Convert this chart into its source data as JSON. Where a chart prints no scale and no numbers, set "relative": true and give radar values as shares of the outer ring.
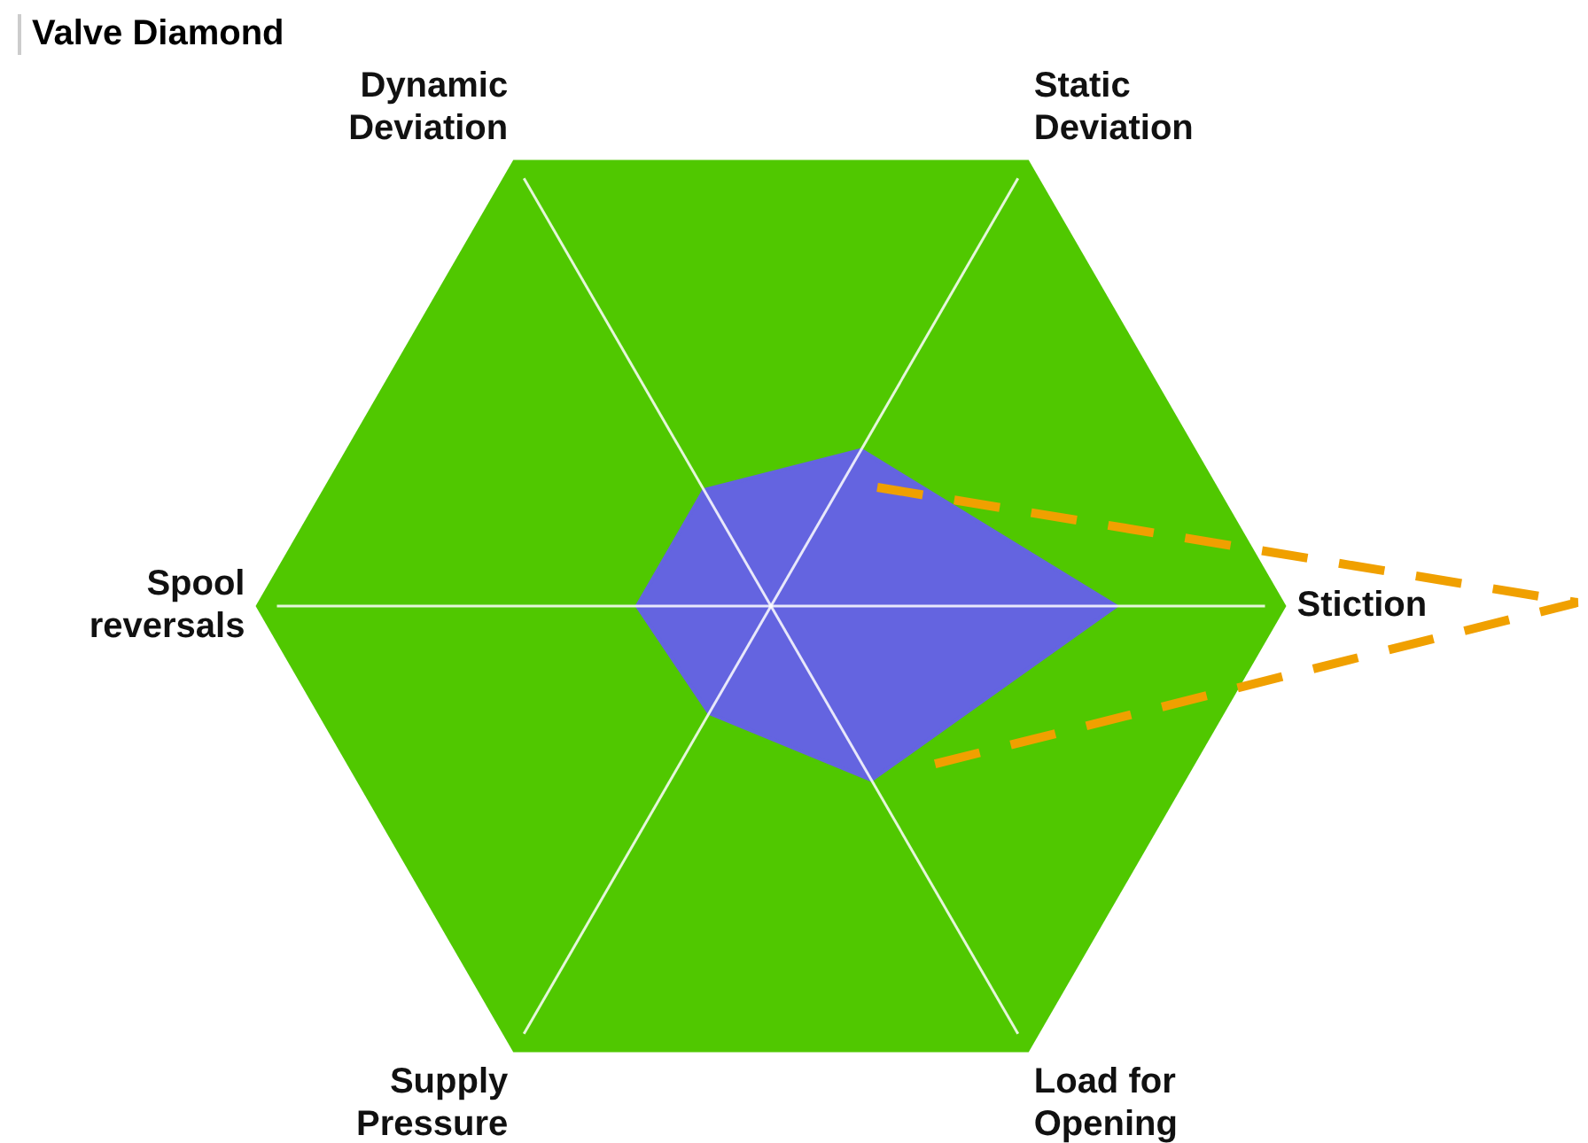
{
  "chart_data": {
    "type": "radar",
    "title": "Valve Diamond",
    "relative": true,
    "categories": [
      "Static Deviation",
      "Stiction",
      "Load for Opening",
      "Supply Pressure",
      "Spool reversals",
      "Dynamic Deviation"
    ],
    "series": [
      {
        "color": "#6464e0",
        "values": [
          0.35,
          0.67,
          0.39,
          0.24,
          0.26,
          0.26
        ]
      }
    ]
  }
}
